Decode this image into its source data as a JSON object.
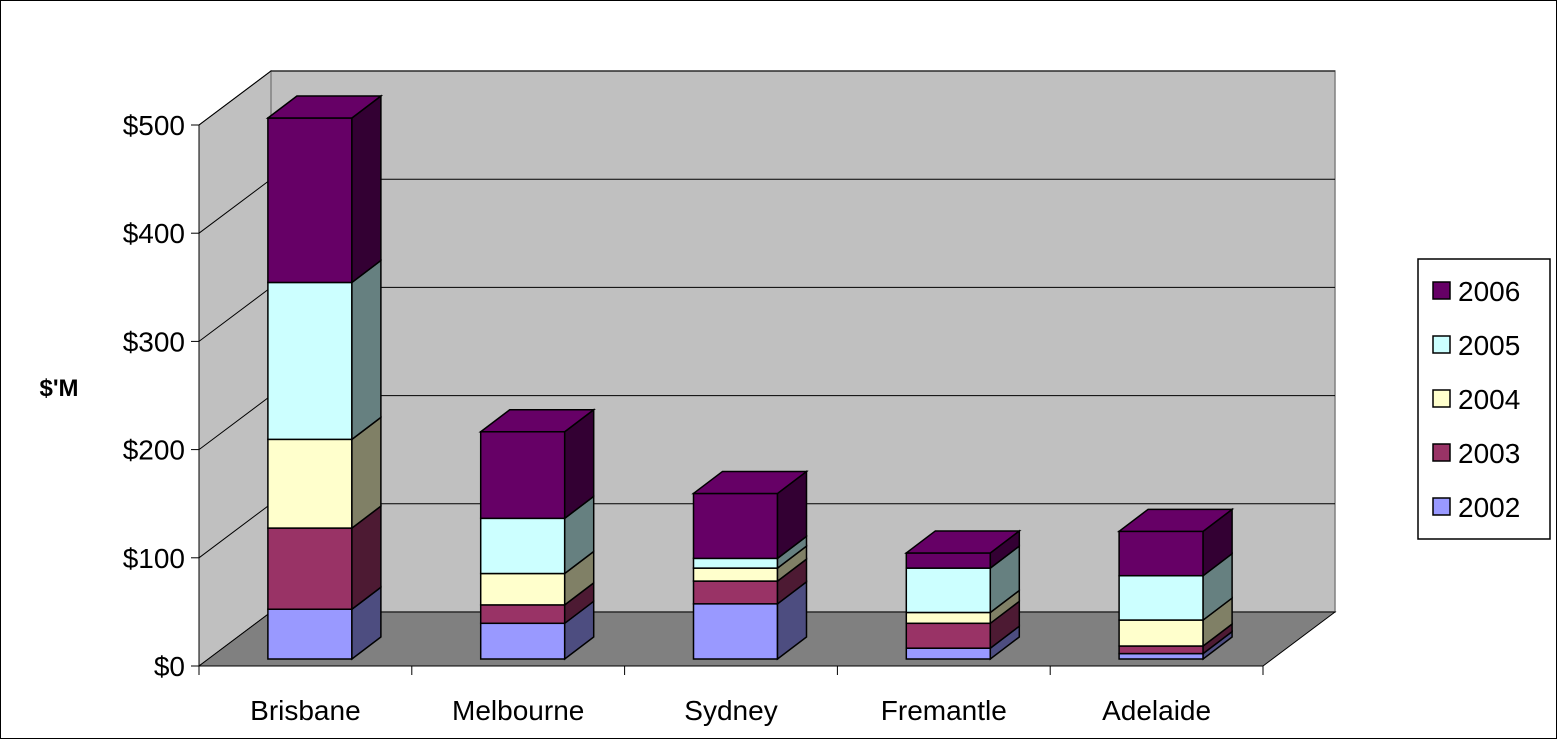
{
  "chart_data": {
    "type": "bar",
    "stacked": true,
    "three_d": true,
    "categories": [
      "Brisbane",
      "Melbourne",
      "Sydney",
      "Fremantle",
      "Adelaide"
    ],
    "series": [
      {
        "name": "2002",
        "values": [
          46,
          33,
          51,
          10,
          5
        ]
      },
      {
        "name": "2003",
        "values": [
          75,
          17,
          21,
          23,
          7
        ]
      },
      {
        "name": "2004",
        "values": [
          82,
          29,
          12,
          10,
          24
        ]
      },
      {
        "name": "2005",
        "values": [
          145,
          51,
          9,
          41,
          41
        ]
      },
      {
        "name": "2006",
        "values": [
          152,
          80,
          60,
          14,
          41
        ]
      }
    ],
    "title": "",
    "xlabel": "",
    "ylabel": "$'M",
    "ylim": [
      0,
      500
    ],
    "yticks": [
      0,
      100,
      200,
      300,
      400,
      500
    ],
    "ytick_labels": [
      "$0",
      "$100",
      "$200",
      "$300",
      "$400",
      "$500"
    ],
    "grid": true,
    "legend_position": "right",
    "legend_order": [
      "2006",
      "2005",
      "2004",
      "2003",
      "2002"
    ],
    "colors": {
      "2002": "#9999ff",
      "2003": "#993366",
      "2004": "#ffffcc",
      "2005": "#ccffff",
      "2006": "#660066",
      "back_wall": "#c0c0c0",
      "floor": "#808080"
    }
  }
}
